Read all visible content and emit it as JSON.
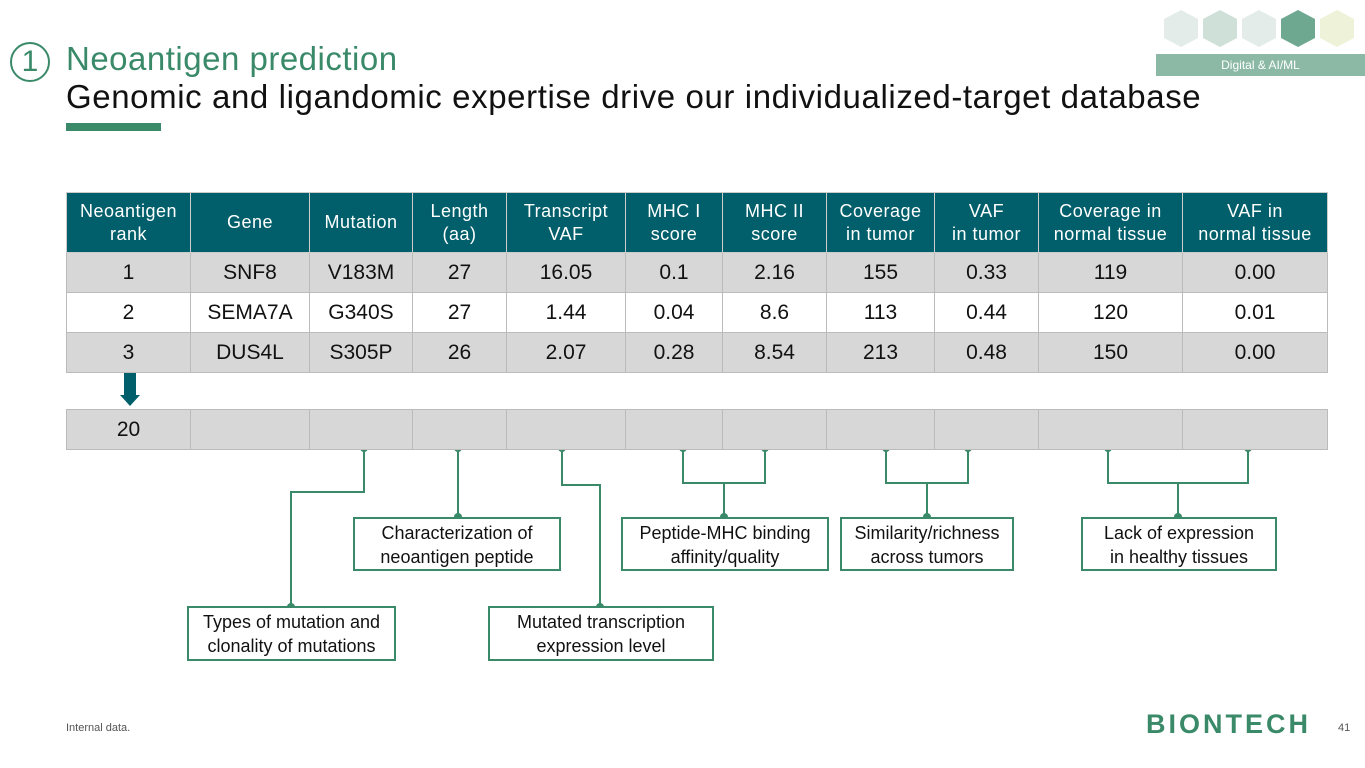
{
  "header": {
    "number": "1",
    "title": "Neoantigen prediction",
    "subtitle": "Genomic and ligandomic expertise drive our individualized-target database",
    "badge": "Digital & AI/ML"
  },
  "table": {
    "headers": [
      "Neoantigen\nrank",
      "Gene",
      "Mutation",
      "Length\n(aa)",
      "Transcript\nVAF",
      "MHC I\nscore",
      "MHC II\nscore",
      "Coverage\nin tumor",
      "VAF\nin tumor",
      "Coverage in\nnormal tissue",
      "VAF in\nnormal tissue"
    ],
    "rows": [
      [
        "1",
        "SNF8",
        "V183M",
        "27",
        "16.05",
        "0.1",
        "2.16",
        "155",
        "0.33",
        "119",
        "0.00"
      ],
      [
        "2",
        "SEMA7A",
        "G340S",
        "27",
        "1.44",
        "0.04",
        "8.6",
        "113",
        "0.44",
        "120",
        "0.01"
      ],
      [
        "3",
        "DUS4L",
        "S305P",
        "26",
        "2.07",
        "0.28",
        "8.54",
        "213",
        "0.48",
        "150",
        "0.00"
      ]
    ],
    "last_rank": "20"
  },
  "callouts": [
    "Characterization of\nneoantigen peptide",
    "Peptide-MHC binding\naffinity/quality",
    "Similarity/richness\nacross tumors",
    "Lack of expression\nin healthy tissues",
    "Types of mutation and\nclonality of mutations",
    "Mutated transcription\nexpression level"
  ],
  "footer": {
    "note": "Internal data.",
    "logo": "BIONTECH",
    "page": "41"
  }
}
